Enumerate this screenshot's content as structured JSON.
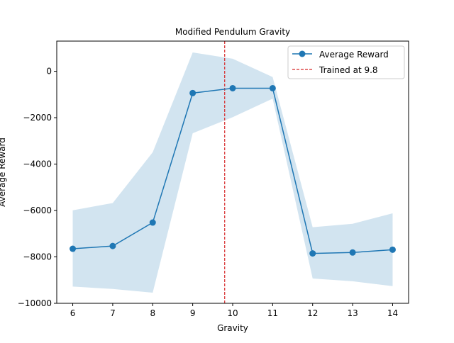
{
  "chart_data": {
    "type": "line",
    "title": "Modified Pendulum Gravity",
    "xlabel": "Gravity",
    "ylabel": "Average Reward",
    "xlim": [
      5.6,
      14.4
    ],
    "ylim": [
      -10000,
      1300
    ],
    "x_ticks": [
      6,
      7,
      8,
      9,
      10,
      11,
      12,
      13,
      14
    ],
    "y_ticks": [
      0,
      -2000,
      -4000,
      -6000,
      -8000,
      -10000
    ],
    "x_tick_labels": [
      "6",
      "7",
      "8",
      "9",
      "10",
      "11",
      "12",
      "13",
      "14"
    ],
    "y_tick_labels": [
      "0",
      "−2000",
      "−4000",
      "−6000",
      "−8000",
      "−10000"
    ],
    "grid": false,
    "legend_position": "top-right",
    "series": [
      {
        "name": "Average Reward",
        "color": "#1f77b4",
        "marker": "circle",
        "x": [
          6,
          7,
          8,
          9,
          10,
          11,
          12,
          13,
          14
        ],
        "y": [
          -7650,
          -7530,
          -6520,
          -940,
          -730,
          -730,
          -7850,
          -7810,
          -7690
        ]
      }
    ],
    "band": {
      "color": "#1f77b4",
      "opacity": 0.2,
      "x": [
        6,
        7,
        8,
        9,
        10,
        11,
        12,
        13,
        14
      ],
      "lower": [
        -9280,
        -9380,
        -9540,
        -2670,
        -1980,
        -1180,
        -8930,
        -9050,
        -9260
      ],
      "upper": [
        -5990,
        -5680,
        -3490,
        810,
        540,
        -250,
        -6720,
        -6570,
        -6120
      ]
    },
    "reference_line": {
      "name": "Trained at 9.8",
      "x": 9.8,
      "color": "#d62728",
      "style": "dashed"
    }
  }
}
